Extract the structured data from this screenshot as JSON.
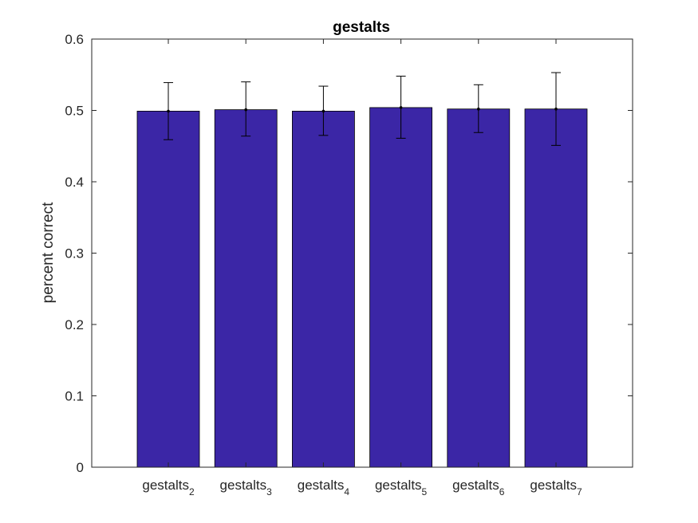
{
  "chart_data": {
    "type": "bar",
    "title": "gestalts",
    "xlabel": "",
    "ylabel": "percent correct",
    "categories": [
      {
        "base": "gestalts",
        "sub": "2"
      },
      {
        "base": "gestalts",
        "sub": "3"
      },
      {
        "base": "gestalts",
        "sub": "4"
      },
      {
        "base": "gestalts",
        "sub": "5"
      },
      {
        "base": "gestalts",
        "sub": "6"
      },
      {
        "base": "gestalts",
        "sub": "7"
      }
    ],
    "values": [
      0.499,
      0.501,
      0.499,
      0.504,
      0.502,
      0.502
    ],
    "error_low": [
      0.459,
      0.464,
      0.465,
      0.461,
      0.469,
      0.451
    ],
    "error_high": [
      0.539,
      0.54,
      0.534,
      0.548,
      0.536,
      0.553
    ],
    "ylim": [
      0,
      0.6
    ],
    "yticks": [
      "0",
      "0.1",
      "0.2",
      "0.3",
      "0.4",
      "0.5",
      "0.6"
    ],
    "ytick_values": [
      0,
      0.1,
      0.2,
      0.3,
      0.4,
      0.5,
      0.6
    ],
    "grid": false,
    "colors": {
      "bar": "#3b26a6",
      "axis": "#262626",
      "errorbar": "#000000"
    }
  }
}
